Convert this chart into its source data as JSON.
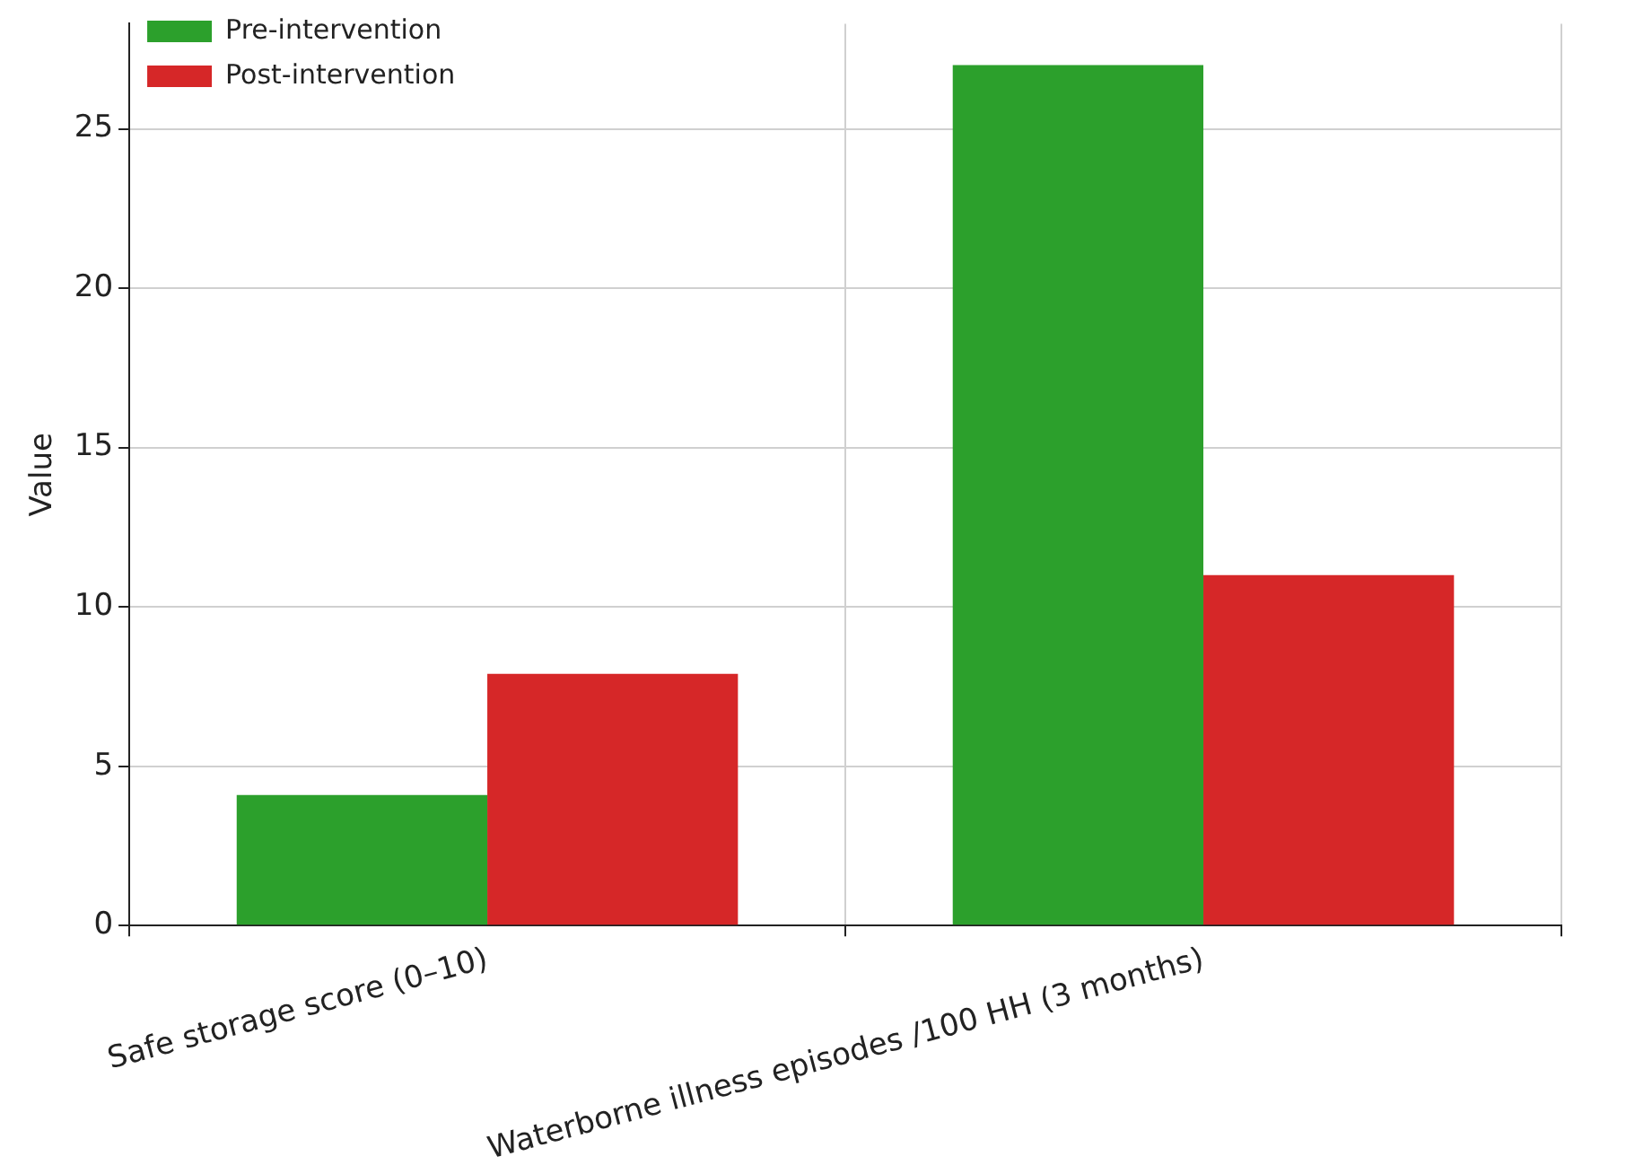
{
  "chart_data": {
    "type": "bar",
    "ylabel": "Value",
    "categories": [
      "Safe storage score (0–10)",
      "Waterborne illness episodes /100 HH (3 months)"
    ],
    "series": [
      {
        "name": "Pre-intervention",
        "color": "#2ca02c",
        "values": [
          4.1,
          27
        ]
      },
      {
        "name": "Post-intervention",
        "color": "#d62728",
        "values": [
          7.9,
          11
        ]
      }
    ],
    "ylim": [
      0,
      28.3
    ],
    "yticks": [
      0,
      5,
      10,
      15,
      20,
      25
    ],
    "grid": true,
    "legend": "top left"
  }
}
